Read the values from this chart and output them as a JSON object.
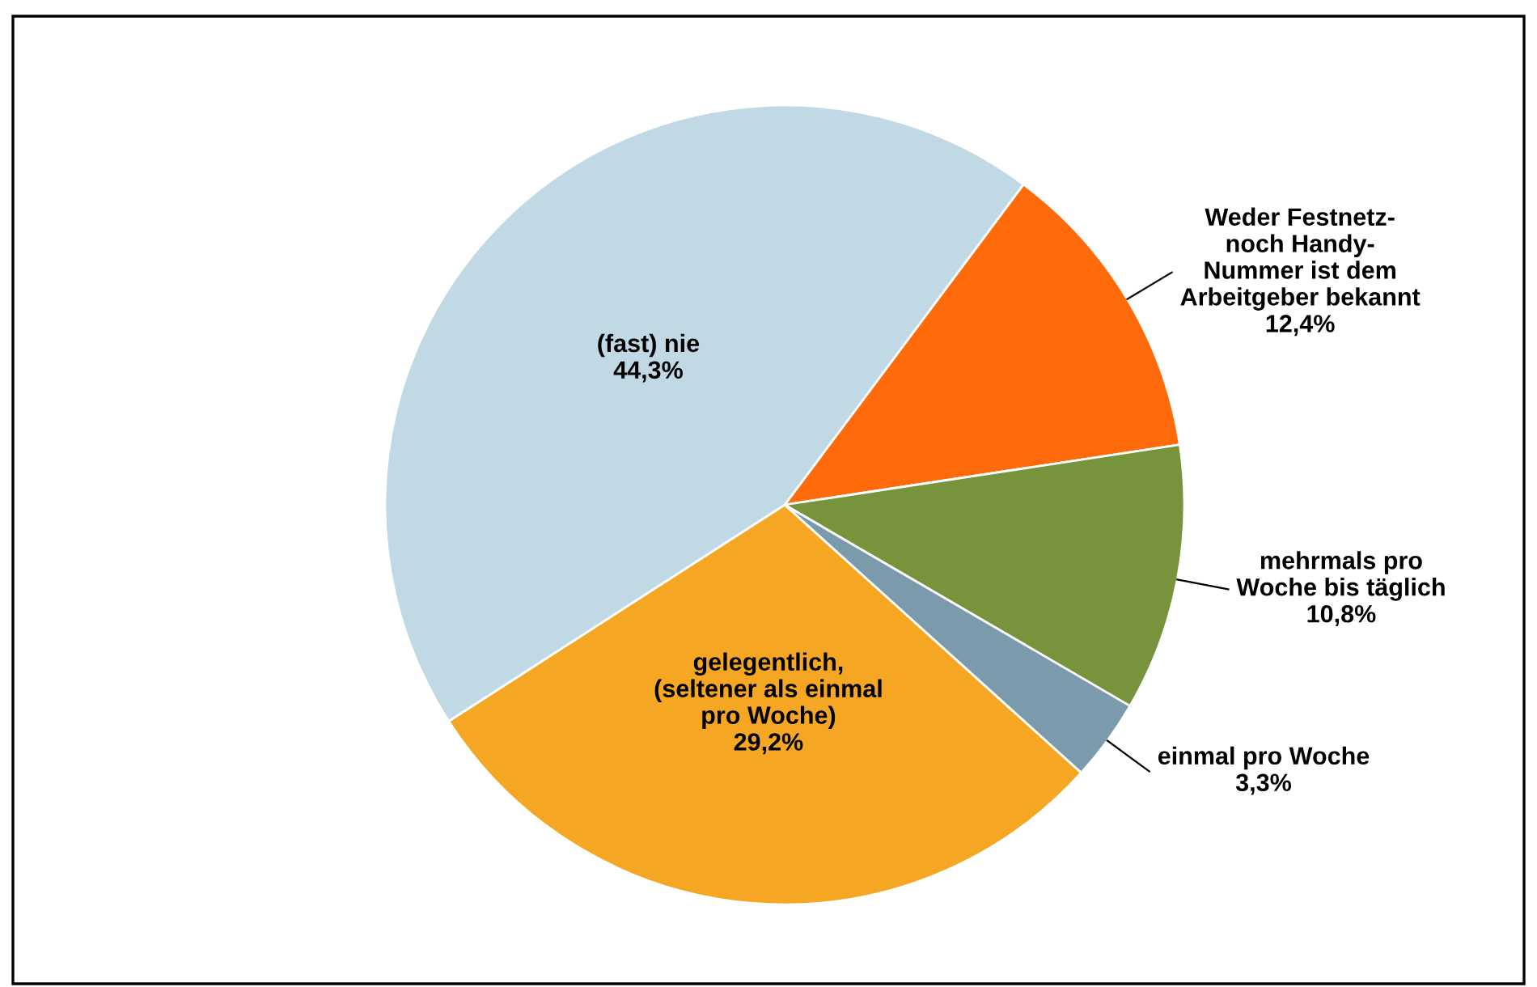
{
  "chart_data": {
    "type": "pie",
    "categories": [
      "Weder Festnetz-\nnoch Handy-\nNummer ist dem\nArbeitgeber bekannt",
      "mehrmals pro\nWoche bis täglich",
      "einmal pro Woche",
      "gelegentlich,\n(seltener als einmal\npro Woche)",
      "(fast) nie"
    ],
    "values": [
      12.4,
      10.8,
      3.3,
      29.2,
      44.3
    ],
    "value_labels": [
      "12,4%",
      "10,8%",
      "3,3%",
      "29,2%",
      "44,3%"
    ],
    "colors": [
      "#ff6a0a",
      "#77933c",
      "#7b9aab",
      "#f5a623",
      "#c0d9e5"
    ]
  }
}
